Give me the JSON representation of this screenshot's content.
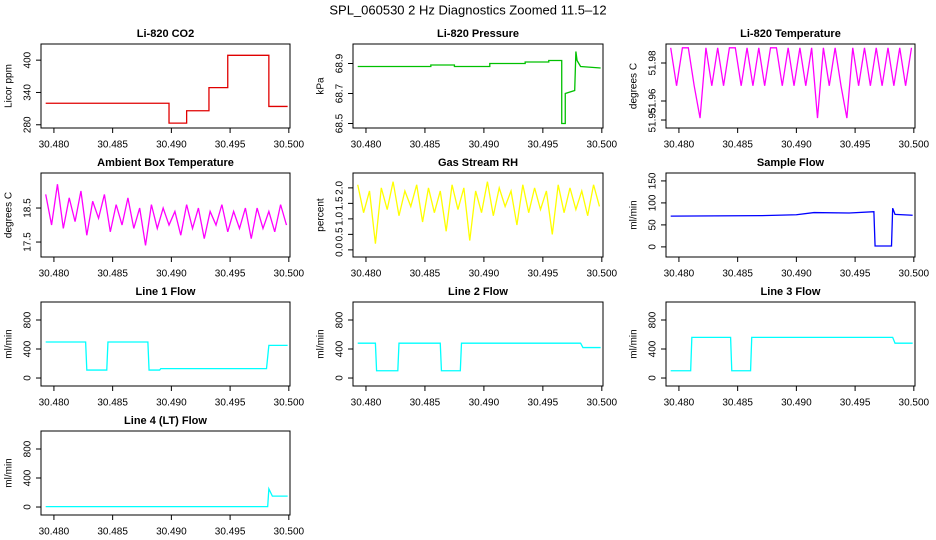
{
  "title": "SPL_060530  2 Hz Diagnostics Zoomed 11.5–12",
  "chart_data": [
    {
      "type": "line",
      "title": "Li-820 CO2",
      "ylabel": "Licor ppm",
      "color": "#e00000",
      "x": [
        30.4793,
        30.4898,
        30.4898,
        30.4913,
        30.4913,
        30.4932,
        30.4932,
        30.4948,
        30.4948,
        30.4983,
        30.4983,
        30.4999
      ],
      "values": [
        320,
        320,
        283,
        283,
        306,
        306,
        349,
        349,
        409,
        409,
        314,
        314
      ],
      "xlim": [
        30.4789,
        30.5001
      ],
      "xticks": [
        {
          "value": 30.48,
          "label": "30.480"
        },
        30.485,
        {
          "value": 30.49,
          "label": "30.490"
        },
        30.495,
        {
          "value": 30.5,
          "label": "30.500"
        }
      ],
      "ylim": [
        274,
        430
      ],
      "yticks": [
        280,
        340,
        400
      ]
    },
    {
      "type": "line",
      "title": "Li-820 Pressure",
      "ylabel": "kPa",
      "color": "#00c000",
      "x": [
        30.4793,
        30.4855,
        30.4855,
        30.4875,
        30.4875,
        30.4905,
        30.4905,
        30.4935,
        30.4935,
        30.4955,
        30.4955,
        30.4966,
        30.4966,
        30.4969,
        30.4969,
        30.4977,
        30.4978,
        30.4979,
        30.4982,
        30.4999
      ],
      "values": [
        68.88,
        68.88,
        68.89,
        68.89,
        68.88,
        68.88,
        68.9,
        68.9,
        68.91,
        68.91,
        68.92,
        68.92,
        68.5,
        68.5,
        68.7,
        68.72,
        68.98,
        68.92,
        68.88,
        68.87
      ],
      "xlim": [
        30.4789,
        30.5001
      ],
      "xticks": [
        {
          "value": 30.48,
          "label": "30.480"
        },
        30.485,
        {
          "value": 30.49,
          "label": "30.490"
        },
        30.495,
        {
          "value": 30.5,
          "label": "30.500"
        }
      ],
      "ylim": [
        68.47,
        69.03
      ],
      "yticks": [
        68.5,
        68.7,
        68.9
      ]
    },
    {
      "type": "line",
      "title": "Li-820 Temperature",
      "ylabel": "degrees C",
      "color": "#ff00ff",
      "x": [
        30.4793,
        30.4798,
        30.4803,
        30.4808,
        30.4813,
        30.4818,
        30.4823,
        30.4828,
        30.4833,
        30.4838,
        30.4843,
        30.4848,
        30.4853,
        30.4858,
        30.4863,
        30.4868,
        30.4873,
        30.4878,
        30.4883,
        30.4888,
        30.4893,
        30.4898,
        30.4903,
        30.4908,
        30.4913,
        30.4918,
        30.4923,
        30.4928,
        30.4933,
        30.4938,
        30.4943,
        30.4948,
        30.4953,
        30.4958,
        30.4963,
        30.4968,
        30.4973,
        30.4978,
        30.4983,
        30.4988,
        30.4993,
        30.4998
      ],
      "values": [
        51.988,
        51.968,
        51.988,
        51.988,
        51.968,
        51.951,
        51.988,
        51.968,
        51.988,
        51.968,
        51.988,
        51.988,
        51.968,
        51.988,
        51.968,
        51.988,
        51.968,
        51.988,
        51.988,
        51.968,
        51.988,
        51.968,
        51.988,
        51.968,
        51.988,
        51.951,
        51.988,
        51.968,
        51.988,
        51.968,
        51.951,
        51.988,
        51.968,
        51.988,
        51.968,
        51.988,
        51.968,
        51.988,
        51.968,
        51.988,
        51.968,
        51.988
      ],
      "xlim": [
        30.4789,
        30.5001
      ],
      "xticks": [
        {
          "value": 30.48,
          "label": "30.480"
        },
        30.485,
        {
          "value": 30.49,
          "label": "30.490"
        },
        30.495,
        {
          "value": 30.5,
          "label": "30.500"
        }
      ],
      "ylim": [
        51.9458,
        51.99
      ],
      "yticks": [
        51.95,
        51.96,
        51.98
      ]
    },
    {
      "type": "line",
      "title": "Ambient Box Temperature",
      "ylabel": "degrees C",
      "color": "#ff00ff",
      "x": [
        30.4793,
        30.4798,
        30.4803,
        30.4808,
        30.4813,
        30.4818,
        30.4823,
        30.4828,
        30.4833,
        30.4838,
        30.4843,
        30.4848,
        30.4853,
        30.4858,
        30.4863,
        30.4868,
        30.4873,
        30.4878,
        30.4883,
        30.4888,
        30.4893,
        30.4898,
        30.4903,
        30.4908,
        30.4913,
        30.4918,
        30.4923,
        30.4928,
        30.4933,
        30.4938,
        30.4943,
        30.4948,
        30.4953,
        30.4958,
        30.4963,
        30.4968,
        30.4973,
        30.4978,
        30.4983,
        30.4988,
        30.4993,
        30.4998
      ],
      "values": [
        18.9,
        18.0,
        19.2,
        17.9,
        18.8,
        18.1,
        19.0,
        17.7,
        18.7,
        18.2,
        18.9,
        17.8,
        18.6,
        18.0,
        18.8,
        17.9,
        18.5,
        17.4,
        18.6,
        17.9,
        18.5,
        18.0,
        18.4,
        17.7,
        18.6,
        17.9,
        18.5,
        17.6,
        18.4,
        18.0,
        18.6,
        17.8,
        18.4,
        17.9,
        18.5,
        17.6,
        18.5,
        17.9,
        18.4,
        17.8,
        18.6,
        18.0
      ],
      "xlim": [
        30.4789,
        30.5001
      ],
      "xticks": [
        {
          "value": 30.48,
          "label": "30.480"
        },
        30.485,
        {
          "value": 30.49,
          "label": "30.490"
        },
        30.495,
        {
          "value": 30.5,
          "label": "30.500"
        }
      ],
      "ylim": [
        17.06,
        19.53
      ],
      "yticks": [
        17.5,
        18.5
      ]
    },
    {
      "type": "line",
      "title": "Gas Stream RH",
      "ylabel": "percent",
      "color": "#ffff00",
      "x": [
        30.4793,
        30.4798,
        30.4803,
        30.4808,
        30.4813,
        30.4818,
        30.4823,
        30.4828,
        30.4833,
        30.4838,
        30.4843,
        30.4848,
        30.4853,
        30.4858,
        30.4863,
        30.4868,
        30.4873,
        30.4878,
        30.4883,
        30.4888,
        30.4893,
        30.4898,
        30.4903,
        30.4908,
        30.4913,
        30.4918,
        30.4923,
        30.4928,
        30.4933,
        30.4938,
        30.4943,
        30.4948,
        30.4953,
        30.4958,
        30.4963,
        30.4968,
        30.4973,
        30.4978,
        30.4983,
        30.4988,
        30.4993,
        30.4998
      ],
      "values": [
        2.1,
        1.2,
        1.9,
        0.2,
        2.0,
        1.3,
        2.2,
        1.1,
        1.9,
        1.4,
        2.1,
        0.9,
        2.0,
        1.2,
        1.9,
        0.6,
        2.1,
        1.3,
        2.0,
        0.3,
        1.9,
        1.2,
        2.2,
        1.1,
        2.0,
        1.4,
        1.9,
        0.8,
        2.1,
        1.2,
        2.0,
        1.3,
        1.9,
        0.5,
        2.1,
        1.2,
        2.0,
        1.3,
        1.9,
        1.1,
        2.1,
        1.4
      ],
      "xlim": [
        30.4789,
        30.5001
      ],
      "xticks": [
        {
          "value": 30.48,
          "label": "30.480"
        },
        30.485,
        {
          "value": 30.49,
          "label": "30.490"
        },
        30.495,
        {
          "value": 30.5,
          "label": "30.500"
        }
      ],
      "ylim": [
        -0.23,
        2.48
      ],
      "yticks": [
        {
          "value": 0,
          "label": "0.0"
        },
        0.5,
        {
          "value": 1,
          "label": "1.0"
        },
        1.5,
        {
          "value": 2,
          "label": "2.0"
        }
      ]
    },
    {
      "type": "line",
      "title": "Sample Flow",
      "ylabel": "ml/min",
      "color": "#0000ff",
      "x": [
        30.4793,
        30.487,
        30.49,
        30.4915,
        30.4945,
        30.4966,
        30.4967,
        30.4981,
        30.4982,
        30.4984,
        30.4999
      ],
      "values": [
        70,
        71,
        73,
        78,
        77,
        80,
        2,
        2,
        88,
        74,
        72
      ],
      "xlim": [
        30.4789,
        30.5001
      ],
      "xticks": [
        {
          "value": 30.48,
          "label": "30.480"
        },
        30.485,
        {
          "value": 30.49,
          "label": "30.490"
        },
        30.495,
        {
          "value": 30.5,
          "label": "30.500"
        }
      ],
      "ylim": [
        -23,
        168
      ],
      "yticks": [
        0,
        50,
        100,
        150
      ]
    },
    {
      "type": "line",
      "title": "Line 1 Flow",
      "ylabel": "ml/min",
      "color": "#00ffff",
      "x": [
        30.4793,
        30.4827,
        30.4828,
        30.4845,
        30.4846,
        30.488,
        30.4881,
        30.489,
        30.4891,
        30.4981,
        30.4983,
        30.4999
      ],
      "values": [
        497,
        497,
        110,
        110,
        497,
        497,
        110,
        110,
        130,
        130,
        450,
        450
      ],
      "xlim": [
        30.4789,
        30.5001
      ],
      "xticks": [
        {
          "value": 30.48,
          "label": "30.480"
        },
        30.485,
        {
          "value": 30.49,
          "label": "30.490"
        },
        30.495,
        {
          "value": 30.5,
          "label": "30.500"
        }
      ],
      "ylim": [
        -110,
        1048
      ],
      "yticks": [
        0,
        400,
        800
      ]
    },
    {
      "type": "line",
      "title": "Line 2 Flow",
      "ylabel": "ml/min",
      "color": "#00ffff",
      "x": [
        30.4793,
        30.4808,
        30.4809,
        30.4827,
        30.4828,
        30.4863,
        30.4864,
        30.488,
        30.4881,
        30.4982,
        30.4984,
        30.4999
      ],
      "values": [
        480,
        480,
        100,
        100,
        480,
        480,
        100,
        100,
        480,
        480,
        420,
        420
      ],
      "xlim": [
        30.4789,
        30.5001
      ],
      "xticks": [
        {
          "value": 30.48,
          "label": "30.480"
        },
        30.485,
        {
          "value": 30.49,
          "label": "30.490"
        },
        30.495,
        {
          "value": 30.5,
          "label": "30.500"
        }
      ],
      "ylim": [
        -110,
        1048
      ],
      "yticks": [
        0,
        400,
        800
      ]
    },
    {
      "type": "line",
      "title": "Line 3 Flow",
      "ylabel": "ml/min",
      "color": "#00ffff",
      "x": [
        30.4793,
        30.481,
        30.4811,
        30.4844,
        30.4845,
        30.4861,
        30.4862,
        30.4982,
        30.4984,
        30.4999
      ],
      "values": [
        100,
        100,
        560,
        560,
        100,
        100,
        560,
        560,
        480,
        480
      ],
      "xlim": [
        30.4789,
        30.5001
      ],
      "xticks": [
        {
          "value": 30.48,
          "label": "30.480"
        },
        30.485,
        {
          "value": 30.49,
          "label": "30.490"
        },
        30.495,
        {
          "value": 30.5,
          "label": "30.500"
        }
      ],
      "ylim": [
        -110,
        1048
      ],
      "yticks": [
        0,
        400,
        800
      ]
    },
    {
      "type": "line",
      "title": "Line 4 (LT) Flow",
      "ylabel": "ml/min",
      "color": "#00ffff",
      "x": [
        30.4793,
        30.4982,
        30.4983,
        30.4986,
        30.4999
      ],
      "values": [
        5,
        5,
        250,
        150,
        150
      ],
      "xlim": [
        30.4789,
        30.5001
      ],
      "xticks": [
        {
          "value": 30.48,
          "label": "30.480"
        },
        30.485,
        {
          "value": 30.49,
          "label": "30.490"
        },
        30.495,
        {
          "value": 30.5,
          "label": "30.500"
        }
      ],
      "ylim": [
        -110,
        1048
      ],
      "yticks": [
        0,
        400,
        800
      ]
    }
  ]
}
